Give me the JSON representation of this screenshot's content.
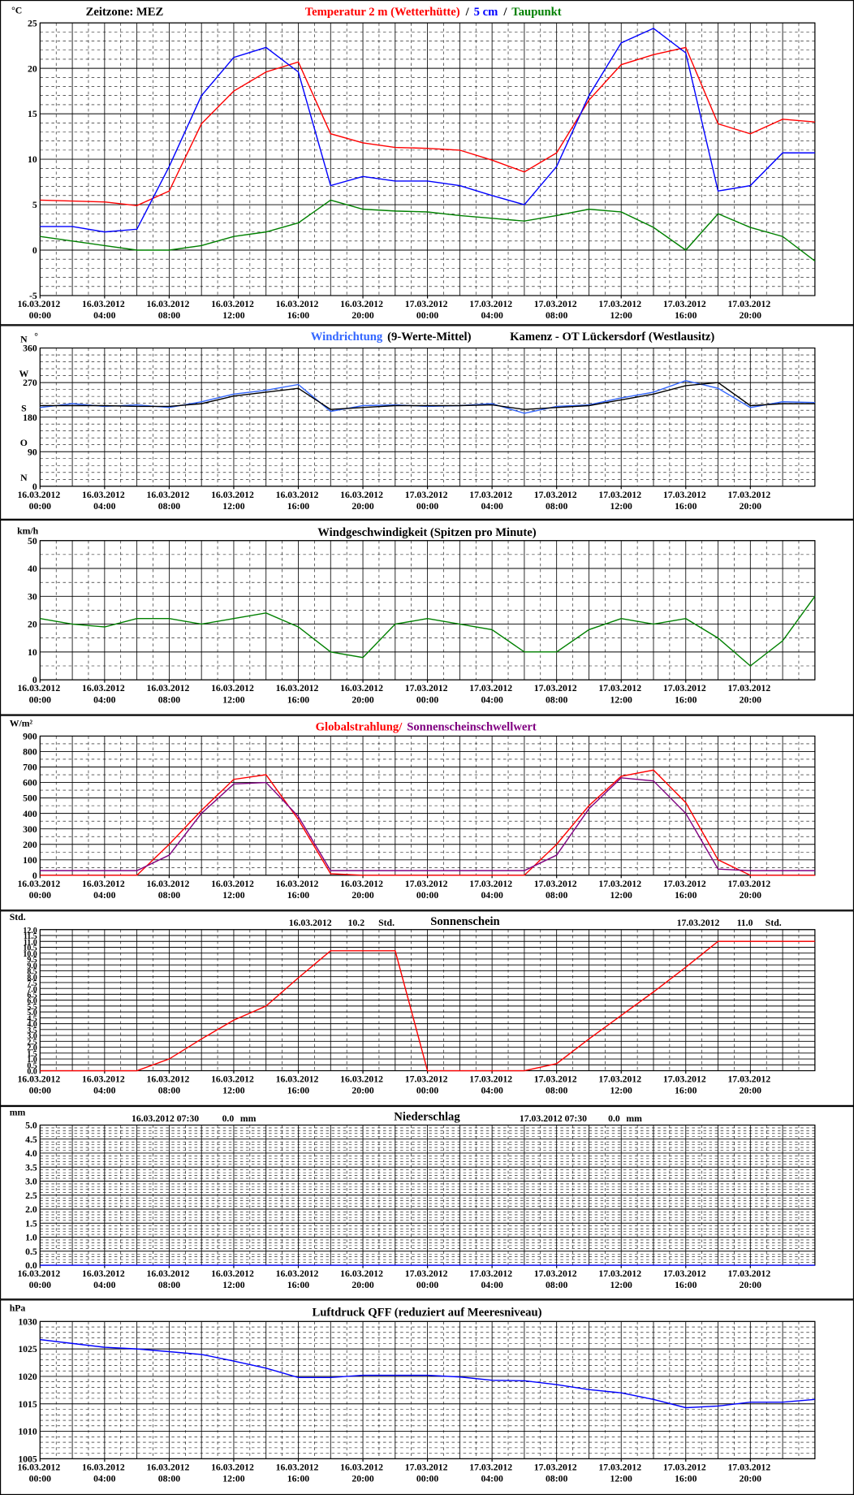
{
  "chart_data": [
    {
      "type": "line",
      "timezone": "Zeitzone: MEZ",
      "y_unit": "°C",
      "separator": "/",
      "x": [
        "16.03.2012 00:00",
        "16.03.2012 02:00",
        "16.03.2012 04:00",
        "16.03.2012 06:00",
        "16.03.2012 08:00",
        "16.03.2012 10:00",
        "16.03.2012 12:00",
        "16.03.2012 14:00",
        "16.03.2012 16:00",
        "16.03.2012 18:00",
        "16.03.2012 20:00",
        "16.03.2012 22:00",
        "17.03.2012 00:00",
        "17.03.2012 02:00",
        "17.03.2012 04:00",
        "17.03.2012 06:00",
        "17.03.2012 08:00",
        "17.03.2012 10:00",
        "17.03.2012 12:00",
        "17.03.2012 14:00",
        "17.03.2012 16:00",
        "17.03.2012 18:00",
        "17.03.2012 20:00",
        "17.03.2012 22:00",
        "18.03.2012 00:00"
      ],
      "xticks": [
        "16.03.2012 00:00",
        "16.03.2012 04:00",
        "16.03.2012 08:00",
        "16.03.2012 12:00",
        "16.03.2012 16:00",
        "16.03.2012 20:00",
        "17.03.2012 00:00",
        "17.03.2012 04:00",
        "17.03.2012 08:00",
        "17.03.2012 12:00",
        "17.03.2012 16:00",
        "17.03.2012 20:00"
      ],
      "series": [
        {
          "name": "Temperatur 2 m (Wetterhütte)",
          "color": "#ff0000",
          "values": [
            5.5,
            5.4,
            5.3,
            4.9,
            6.5,
            13.9,
            17.5,
            19.6,
            20.7,
            12.8,
            11.8,
            11.3,
            11.2,
            11.0,
            9.9,
            8.6,
            10.7,
            16.5,
            20.4,
            21.5,
            22.3,
            13.9,
            12.8,
            14.4,
            14.1
          ]
        },
        {
          "name": "5 cm",
          "color": "#0000ff",
          "values": [
            2.6,
            2.6,
            2.0,
            2.3,
            9.2,
            17.0,
            21.2,
            22.3,
            19.6,
            7.1,
            8.1,
            7.6,
            7.6,
            7.1,
            6.0,
            5.0,
            9.2,
            17.0,
            22.8,
            24.4,
            21.7,
            6.5,
            7.1,
            10.7,
            10.7
          ]
        },
        {
          "name": "Taupunkt",
          "color": "#008000",
          "values": [
            1.5,
            1.0,
            0.5,
            0.0,
            0.0,
            0.5,
            1.5,
            2.0,
            3.0,
            5.5,
            4.5,
            4.3,
            4.2,
            3.8,
            3.5,
            3.2,
            3.8,
            4.5,
            4.2,
            2.5,
            0.0,
            4.0,
            2.5,
            1.5,
            -1.2
          ]
        }
      ],
      "ylim": [
        -5,
        25
      ],
      "yticks": [
        -5,
        0,
        5,
        10,
        15,
        20,
        25
      ],
      "grid": true
    },
    {
      "type": "line",
      "title": "Kamenz - OT Lückersdorf (Westlausitz)",
      "y_unit": "°",
      "compass": [
        {
          "value": 0,
          "label": "N"
        },
        {
          "value": 90,
          "label": "O"
        },
        {
          "value": 180,
          "label": "S"
        },
        {
          "value": 270,
          "label": "W"
        },
        {
          "value": 360,
          "label": "N"
        }
      ],
      "x": [
        "16.03.2012 00:00",
        "16.03.2012 02:00",
        "16.03.2012 04:00",
        "16.03.2012 06:00",
        "16.03.2012 08:00",
        "16.03.2012 10:00",
        "16.03.2012 12:00",
        "16.03.2012 14:00",
        "16.03.2012 16:00",
        "16.03.2012 18:00",
        "16.03.2012 20:00",
        "16.03.2012 22:00",
        "17.03.2012 00:00",
        "17.03.2012 02:00",
        "17.03.2012 04:00",
        "17.03.2012 06:00",
        "17.03.2012 08:00",
        "17.03.2012 10:00",
        "17.03.2012 12:00",
        "17.03.2012 14:00",
        "17.03.2012 16:00",
        "17.03.2012 18:00",
        "17.03.2012 20:00",
        "17.03.2012 22:00",
        "18.03.2012 00:00"
      ],
      "xticks": [
        "16.03.2012 00:00",
        "16.03.2012 04:00",
        "16.03.2012 08:00",
        "16.03.2012 12:00",
        "16.03.2012 16:00",
        "16.03.2012 20:00",
        "17.03.2012 00:00",
        "17.03.2012 04:00",
        "17.03.2012 08:00",
        "17.03.2012 12:00",
        "17.03.2012 16:00",
        "17.03.2012 20:00"
      ],
      "series": [
        {
          "name": "Windrichtung",
          "color": "#3366ff",
          "values": [
            205,
            215,
            208,
            212,
            205,
            220,
            240,
            250,
            265,
            195,
            210,
            212,
            208,
            210,
            215,
            190,
            208,
            212,
            230,
            245,
            275,
            255,
            205,
            220,
            218
          ]
        },
        {
          "name": "(9-Werte-Mittel)",
          "color": "#000000",
          "values": [
            210,
            210,
            210,
            208,
            208,
            215,
            235,
            245,
            255,
            200,
            205,
            210,
            210,
            210,
            212,
            200,
            205,
            210,
            225,
            240,
            262,
            270,
            210,
            215,
            215
          ]
        }
      ],
      "ylim": [
        0,
        360
      ],
      "yticks": [
        0,
        90,
        180,
        270,
        360
      ],
      "grid": true
    },
    {
      "type": "line",
      "title": "Windgeschwindigkeit (Spitzen pro Minute)",
      "y_unit": "km/h",
      "x": [
        "16.03.2012 00:00",
        "16.03.2012 02:00",
        "16.03.2012 04:00",
        "16.03.2012 06:00",
        "16.03.2012 08:00",
        "16.03.2012 10:00",
        "16.03.2012 12:00",
        "16.03.2012 14:00",
        "16.03.2012 16:00",
        "16.03.2012 18:00",
        "16.03.2012 20:00",
        "16.03.2012 22:00",
        "17.03.2012 00:00",
        "17.03.2012 02:00",
        "17.03.2012 04:00",
        "17.03.2012 06:00",
        "17.03.2012 08:00",
        "17.03.2012 10:00",
        "17.03.2012 12:00",
        "17.03.2012 14:00",
        "17.03.2012 16:00",
        "17.03.2012 18:00",
        "17.03.2012 20:00",
        "17.03.2012 22:00",
        "18.03.2012 00:00"
      ],
      "xticks": [
        "16.03.2012 00:00",
        "16.03.2012 04:00",
        "16.03.2012 08:00",
        "16.03.2012 12:00",
        "16.03.2012 16:00",
        "16.03.2012 20:00",
        "17.03.2012 00:00",
        "17.03.2012 04:00",
        "17.03.2012 08:00",
        "17.03.2012 12:00",
        "17.03.2012 16:00",
        "17.03.2012 20:00"
      ],
      "series": [
        {
          "color": "#008000",
          "values": [
            22,
            20,
            19,
            22,
            22,
            20,
            22,
            24,
            19,
            10,
            8,
            20,
            22,
            20,
            18,
            10,
            10,
            18,
            22,
            20,
            22,
            15,
            5,
            14,
            30
          ]
        }
      ],
      "ylim": [
        0,
        50
      ],
      "yticks": [
        0,
        10,
        20,
        30,
        40,
        50
      ],
      "grid": true
    },
    {
      "type": "line",
      "y_unit": "W/m²",
      "x": [
        "16.03.2012 00:00",
        "16.03.2012 02:00",
        "16.03.2012 04:00",
        "16.03.2012 06:00",
        "16.03.2012 08:00",
        "16.03.2012 10:00",
        "16.03.2012 12:00",
        "16.03.2012 14:00",
        "16.03.2012 16:00",
        "16.03.2012 18:00",
        "16.03.2012 20:00",
        "16.03.2012 22:00",
        "17.03.2012 00:00",
        "17.03.2012 02:00",
        "17.03.2012 04:00",
        "17.03.2012 06:00",
        "17.03.2012 08:00",
        "17.03.2012 10:00",
        "17.03.2012 12:00",
        "17.03.2012 14:00",
        "17.03.2012 16:00",
        "17.03.2012 18:00",
        "17.03.2012 20:00",
        "17.03.2012 22:00",
        "18.03.2012 00:00"
      ],
      "xticks": [
        "16.03.2012 00:00",
        "16.03.2012 04:00",
        "16.03.2012 08:00",
        "16.03.2012 12:00",
        "16.03.2012 16:00",
        "16.03.2012 20:00",
        "17.03.2012 00:00",
        "17.03.2012 04:00",
        "17.03.2012 08:00",
        "17.03.2012 12:00",
        "17.03.2012 16:00",
        "17.03.2012 20:00"
      ],
      "series": [
        {
          "name": "Globalstrahlung/",
          "color": "#ff0000",
          "values": [
            0,
            0,
            0,
            0,
            200,
            420,
            620,
            650,
            360,
            10,
            0,
            0,
            0,
            0,
            0,
            0,
            200,
            450,
            640,
            680,
            470,
            100,
            0,
            0,
            0
          ]
        },
        {
          "name": "Sonnenscheinschwellwert",
          "color": "#800080",
          "values": [
            30,
            30,
            30,
            30,
            130,
            400,
            590,
            600,
            380,
            30,
            30,
            30,
            30,
            30,
            30,
            30,
            130,
            430,
            630,
            610,
            400,
            40,
            30,
            30,
            30
          ]
        }
      ],
      "ylim": [
        0,
        900
      ],
      "yticks": [
        0,
        100,
        200,
        300,
        400,
        500,
        600,
        700,
        800,
        900
      ],
      "grid": true
    },
    {
      "type": "line",
      "title": "Sonnenschein",
      "y_unit": "Std.",
      "annotations": [
        {
          "date": "16.03.2012",
          "total": "10.2",
          "unit": "Std."
        },
        {
          "date": "17.03.2012",
          "total": "11.0",
          "unit": "Std."
        }
      ],
      "x": [
        "16.03.2012 00:00",
        "16.03.2012 02:00",
        "16.03.2012 04:00",
        "16.03.2012 06:00",
        "16.03.2012 08:00",
        "16.03.2012 10:00",
        "16.03.2012 12:00",
        "16.03.2012 14:00",
        "16.03.2012 16:00",
        "16.03.2012 18:00",
        "16.03.2012 20:00",
        "16.03.2012 22:00",
        "17.03.2012 00:00",
        "17.03.2012 02:00",
        "17.03.2012 04:00",
        "17.03.2012 06:00",
        "17.03.2012 08:00",
        "17.03.2012 10:00",
        "17.03.2012 12:00",
        "17.03.2012 14:00",
        "17.03.2012 16:00",
        "17.03.2012 18:00",
        "17.03.2012 20:00",
        "17.03.2012 22:00",
        "18.03.2012 00:00"
      ],
      "xticks": [
        "16.03.2012 00:00",
        "16.03.2012 04:00",
        "16.03.2012 08:00",
        "16.03.2012 12:00",
        "16.03.2012 16:00",
        "16.03.2012 20:00",
        "17.03.2012 00:00",
        "17.03.2012 04:00",
        "17.03.2012 08:00",
        "17.03.2012 12:00",
        "17.03.2012 16:00",
        "17.03.2012 20:00"
      ],
      "series": [
        {
          "color": "#ff0000",
          "values": [
            0,
            0,
            0,
            0,
            1.0,
            2.7,
            4.3,
            5.5,
            7.9,
            10.2,
            10.2,
            10.2,
            0,
            0,
            0,
            0,
            0.6,
            2.7,
            4.7,
            6.7,
            8.8,
            11.0,
            11.0,
            11.0,
            11.0
          ]
        }
      ],
      "ylim": [
        0,
        12
      ],
      "yticks": [
        {
          "value": 0,
          "label": "0.0"
        },
        0.5,
        {
          "value": 1,
          "label": "1.0"
        },
        1.5,
        {
          "value": 2,
          "label": "2.0"
        },
        2.5,
        {
          "value": 3,
          "label": "3.0"
        },
        3.5,
        {
          "value": 4,
          "label": "4.0"
        },
        4.5,
        {
          "value": 5,
          "label": "5.0"
        },
        5.5,
        {
          "value": 6,
          "label": "6.0"
        },
        6.5,
        {
          "value": 7,
          "label": "7.0"
        },
        7.5,
        {
          "value": 8,
          "label": "8.0"
        },
        8.5,
        {
          "value": 9,
          "label": "9.0"
        },
        9.5,
        {
          "value": 10,
          "label": "10.0"
        },
        10.5,
        {
          "value": 11,
          "label": "11.0"
        },
        11.5,
        {
          "value": 12,
          "label": "12.0"
        }
      ],
      "grid": true
    },
    {
      "type": "line",
      "title": "Niederschlag",
      "y_unit": "mm",
      "annotations": [
        {
          "time": "16.03.2012 07:30",
          "amount": "0.0",
          "unit": "mm"
        },
        {
          "time": "17.03.2012 07:30",
          "amount": "0.0",
          "unit": "mm"
        }
      ],
      "x": [
        "16.03.2012 00:00",
        "16.03.2012 02:00",
        "16.03.2012 04:00",
        "16.03.2012 06:00",
        "16.03.2012 08:00",
        "16.03.2012 10:00",
        "16.03.2012 12:00",
        "16.03.2012 14:00",
        "16.03.2012 16:00",
        "16.03.2012 18:00",
        "16.03.2012 20:00",
        "16.03.2012 22:00",
        "17.03.2012 00:00",
        "17.03.2012 02:00",
        "17.03.2012 04:00",
        "17.03.2012 06:00",
        "17.03.2012 08:00",
        "17.03.2012 10:00",
        "17.03.2012 12:00",
        "17.03.2012 14:00",
        "17.03.2012 16:00",
        "17.03.2012 18:00",
        "17.03.2012 20:00",
        "17.03.2012 22:00",
        "18.03.2012 00:00"
      ],
      "xticks": [
        "16.03.2012 00:00",
        "16.03.2012 04:00",
        "16.03.2012 08:00",
        "16.03.2012 12:00",
        "16.03.2012 16:00",
        "16.03.2012 20:00",
        "17.03.2012 00:00",
        "17.03.2012 04:00",
        "17.03.2012 08:00",
        "17.03.2012 12:00",
        "17.03.2012 16:00",
        "17.03.2012 20:00"
      ],
      "series": [
        {
          "color": "#0000ff",
          "values": [
            0,
            0,
            0,
            0,
            0,
            0,
            0,
            0,
            0,
            0,
            0,
            0,
            0,
            0,
            0,
            0,
            0,
            0,
            0,
            0,
            0,
            0,
            0,
            0,
            0
          ]
        }
      ],
      "ylim": [
        0,
        5
      ],
      "yticks": [
        {
          "value": 0,
          "label": "0.0"
        },
        0.5,
        {
          "value": 1,
          "label": "1.0"
        },
        1.5,
        {
          "value": 2,
          "label": "2.0"
        },
        2.5,
        {
          "value": 3,
          "label": "3.0"
        },
        3.5,
        {
          "value": 4,
          "label": "4.0"
        },
        4.5,
        {
          "value": 5,
          "label": "5.0"
        }
      ],
      "grid": true
    },
    {
      "type": "line",
      "title": "Luftdruck QFF (reduziert auf Meeresniveau)",
      "y_unit": "hPa",
      "x": [
        "16.03.2012 00:00",
        "16.03.2012 02:00",
        "16.03.2012 04:00",
        "16.03.2012 06:00",
        "16.03.2012 08:00",
        "16.03.2012 10:00",
        "16.03.2012 12:00",
        "16.03.2012 14:00",
        "16.03.2012 16:00",
        "16.03.2012 18:00",
        "16.03.2012 20:00",
        "16.03.2012 22:00",
        "17.03.2012 00:00",
        "17.03.2012 02:00",
        "17.03.2012 04:00",
        "17.03.2012 06:00",
        "17.03.2012 08:00",
        "17.03.2012 10:00",
        "17.03.2012 12:00",
        "17.03.2012 14:00",
        "17.03.2012 16:00",
        "17.03.2012 18:00",
        "17.03.2012 20:00",
        "17.03.2012 22:00",
        "18.03.2012 00:00"
      ],
      "xticks": [
        "16.03.2012 00:00",
        "16.03.2012 04:00",
        "16.03.2012 08:00",
        "16.03.2012 12:00",
        "16.03.2012 16:00",
        "16.03.2012 20:00",
        "17.03.2012 00:00",
        "17.03.2012 04:00",
        "17.03.2012 08:00",
        "17.03.2012 12:00",
        "17.03.2012 16:00",
        "17.03.2012 20:00"
      ],
      "series": [
        {
          "color": "#0000ff",
          "values": [
            1026.7,
            1026.0,
            1025.3,
            1025.0,
            1024.5,
            1024.0,
            1022.8,
            1021.5,
            1019.8,
            1019.8,
            1020.2,
            1020.2,
            1020.2,
            1019.9,
            1019.3,
            1019.2,
            1018.5,
            1017.6,
            1017.0,
            1015.8,
            1014.3,
            1014.6,
            1015.3,
            1015.3,
            1015.8
          ]
        }
      ],
      "ylim": [
        1005,
        1030
      ],
      "yticks": [
        1005,
        1010,
        1015,
        1020,
        1025,
        1030
      ],
      "grid": true
    }
  ]
}
